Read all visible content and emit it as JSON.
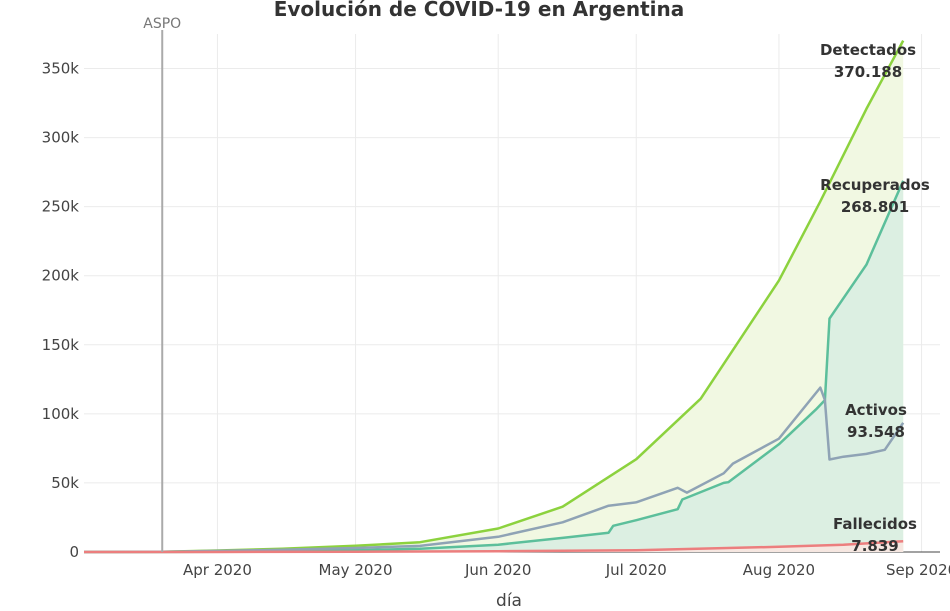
{
  "chart_data": {
    "type": "area",
    "title": "Evolución de COVID-19 en Argentina",
    "xlabel": "día",
    "ylabel": "",
    "x_range": [
      "2020-03-03",
      "2020-09-05"
    ],
    "ylim": [
      0,
      375000
    ],
    "grid": true,
    "x_ticks": [
      {
        "date": "2020-04-01",
        "label": "Apr 2020"
      },
      {
        "date": "2020-05-01",
        "label": "May 2020"
      },
      {
        "date": "2020-06-01",
        "label": "Jun 2020"
      },
      {
        "date": "2020-07-01",
        "label": "Jul 2020"
      },
      {
        "date": "2020-08-01",
        "label": "Aug 2020"
      },
      {
        "date": "2020-09-01",
        "label": "Sep 2020"
      }
    ],
    "y_ticks": [
      {
        "value": 0,
        "label": "0"
      },
      {
        "value": 50000,
        "label": "50k"
      },
      {
        "value": 100000,
        "label": "100k"
      },
      {
        "value": 150000,
        "label": "150k"
      },
      {
        "value": 200000,
        "label": "200k"
      },
      {
        "value": 250000,
        "label": "250k"
      },
      {
        "value": 300000,
        "label": "300k"
      },
      {
        "value": 350000,
        "label": "350k"
      }
    ],
    "annotations": [
      {
        "type": "vline",
        "date": "2020-03-20",
        "label": "ASPO",
        "color": "#aaaaaa"
      }
    ],
    "series": [
      {
        "name": "Detectados",
        "end_label": "370.188",
        "color": "#8cd23e",
        "fill": "#f1f8e2",
        "points": [
          [
            "2020-03-03",
            0
          ],
          [
            "2020-03-20",
            130
          ],
          [
            "2020-04-01",
            1050
          ],
          [
            "2020-04-15",
            2300
          ],
          [
            "2020-05-01",
            4500
          ],
          [
            "2020-05-15",
            7100
          ],
          [
            "2020-06-01",
            17000
          ],
          [
            "2020-06-15",
            32800
          ],
          [
            "2020-07-01",
            67200
          ],
          [
            "2020-07-15",
            111000
          ],
          [
            "2020-08-01",
            196500
          ],
          [
            "2020-08-10",
            253800
          ],
          [
            "2020-08-20",
            320800
          ],
          [
            "2020-08-28",
            370188
          ]
        ]
      },
      {
        "name": "Recuperados",
        "end_label": "268.801",
        "color": "#5cbf9b",
        "fill": "#dcefe2",
        "points": [
          [
            "2020-03-03",
            0
          ],
          [
            "2020-03-20",
            0
          ],
          [
            "2020-04-01",
            240
          ],
          [
            "2020-04-15",
            600
          ],
          [
            "2020-05-01",
            1300
          ],
          [
            "2020-05-15",
            2300
          ],
          [
            "2020-06-01",
            5300
          ],
          [
            "2020-06-15",
            10200
          ],
          [
            "2020-06-25",
            14000
          ],
          [
            "2020-06-26",
            19000
          ],
          [
            "2020-07-01",
            23000
          ],
          [
            "2020-07-10",
            31000
          ],
          [
            "2020-07-11",
            38000
          ],
          [
            "2020-07-20",
            50000
          ],
          [
            "2020-07-21",
            50500
          ],
          [
            "2020-08-01",
            78000
          ],
          [
            "2020-08-09",
            103000
          ],
          [
            "2020-08-11",
            110000
          ],
          [
            "2020-08-12",
            169000
          ],
          [
            "2020-08-20",
            208000
          ],
          [
            "2020-08-28",
            268801
          ]
        ]
      },
      {
        "name": "Activos",
        "end_label": "93.548",
        "color": "#8fa3b5",
        "fill": "none",
        "points": [
          [
            "2020-03-03",
            0
          ],
          [
            "2020-03-20",
            130
          ],
          [
            "2020-04-01",
            800
          ],
          [
            "2020-04-15",
            1600
          ],
          [
            "2020-05-01",
            2900
          ],
          [
            "2020-05-15",
            4400
          ],
          [
            "2020-06-01",
            11000
          ],
          [
            "2020-06-15",
            21500
          ],
          [
            "2020-06-25",
            33500
          ],
          [
            "2020-07-01",
            36000
          ],
          [
            "2020-07-10",
            46500
          ],
          [
            "2020-07-12",
            43000
          ],
          [
            "2020-07-20",
            57000
          ],
          [
            "2020-07-22",
            64000
          ],
          [
            "2020-08-01",
            82000
          ],
          [
            "2020-08-10",
            119000
          ],
          [
            "2020-08-11",
            110000
          ],
          [
            "2020-08-12",
            67000
          ],
          [
            "2020-08-15",
            69000
          ],
          [
            "2020-08-20",
            71000
          ],
          [
            "2020-08-24",
            74000
          ],
          [
            "2020-08-28",
            93548
          ]
        ]
      },
      {
        "name": "Fallecidos",
        "end_label": "7.839",
        "color": "#ec7e7e",
        "fill": "#f6e7e1",
        "points": [
          [
            "2020-03-03",
            0
          ],
          [
            "2020-04-01",
            20
          ],
          [
            "2020-05-01",
            200
          ],
          [
            "2020-06-01",
            550
          ],
          [
            "2020-07-01",
            1300
          ],
          [
            "2020-08-01",
            3800
          ],
          [
            "2020-08-15",
            5300
          ],
          [
            "2020-08-28",
            7839
          ]
        ]
      }
    ]
  }
}
